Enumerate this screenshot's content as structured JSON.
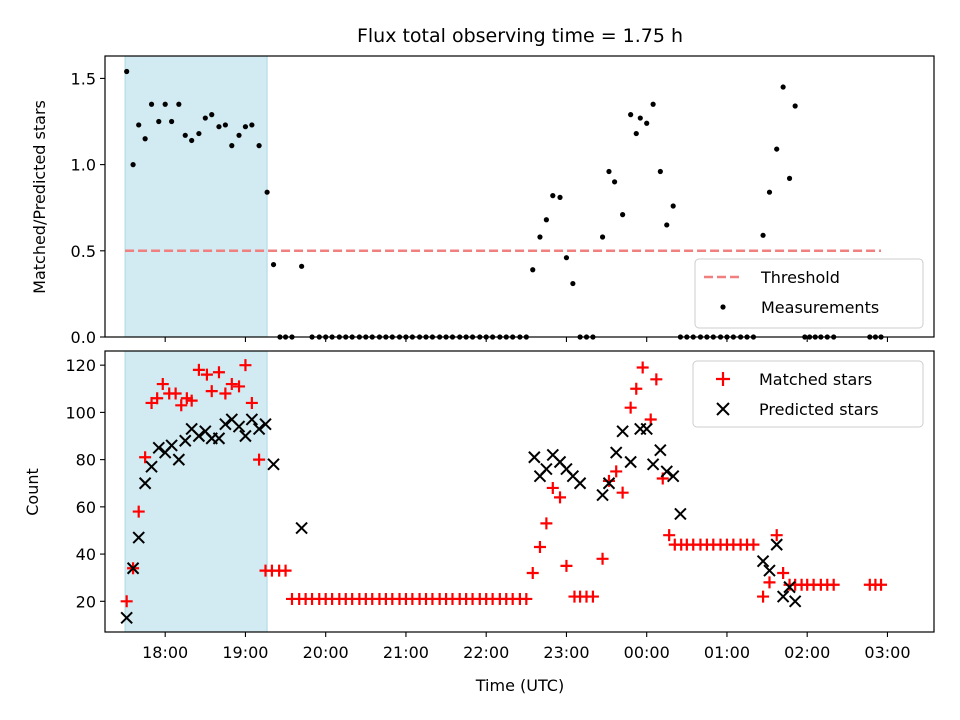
{
  "chart_data": [
    {
      "type": "scatter",
      "title": "Flux total observing time = 1.75 h",
      "xlabel": "",
      "ylabel": "Matched/Predicted stars",
      "xlim": [
        17.25,
        27.58
      ],
      "ylim": [
        0,
        1.63
      ],
      "yticks": [
        0.0,
        0.5,
        1.0,
        1.5
      ],
      "ytick_labels": [
        "0.0",
        "0.5",
        "1.0",
        "1.5"
      ],
      "xticks": [
        18,
        19,
        20,
        21,
        22,
        23,
        24,
        25,
        26,
        27
      ],
      "shaded_region": {
        "x_start": 17.5,
        "x_end": 19.27,
        "color": "#add8e6"
      },
      "threshold": {
        "name": "Threshold",
        "value": 0.5,
        "x_start": 17.5,
        "x_end": 26.92,
        "color": "#f08080"
      },
      "legend": {
        "position": "lower-right",
        "entries": [
          "Threshold",
          "Measurements"
        ]
      },
      "series": [
        {
          "name": "Measurements",
          "color": "#000000",
          "marker": "dot",
          "x": [
            17.52,
            17.6,
            17.67,
            17.75,
            17.83,
            17.92,
            18.0,
            18.08,
            18.17,
            18.25,
            18.33,
            18.42,
            18.5,
            18.58,
            18.67,
            18.75,
            18.83,
            18.92,
            19.0,
            19.08,
            19.17,
            19.27,
            19.35,
            19.43,
            19.5,
            19.58,
            19.7,
            19.83,
            19.92,
            20.0,
            20.08,
            20.17,
            20.25,
            20.33,
            20.42,
            20.5,
            20.58,
            20.67,
            20.75,
            20.83,
            20.92,
            21.0,
            21.08,
            21.17,
            21.25,
            21.33,
            21.42,
            21.5,
            21.58,
            21.67,
            21.75,
            21.83,
            21.92,
            22.0,
            22.08,
            22.17,
            22.25,
            22.33,
            22.42,
            22.5,
            22.58,
            22.67,
            22.75,
            22.83,
            22.92,
            23.0,
            23.08,
            23.17,
            23.25,
            23.33,
            23.45,
            23.53,
            23.6,
            23.7,
            23.8,
            23.87,
            23.92,
            24.0,
            24.08,
            24.17,
            24.25,
            24.33,
            24.42,
            24.5,
            24.58,
            24.67,
            24.75,
            24.83,
            24.92,
            25.0,
            25.08,
            25.17,
            25.25,
            25.33,
            25.45,
            25.53,
            25.62,
            25.7,
            25.78,
            25.85,
            25.97,
            26.03,
            26.1,
            26.17,
            26.25,
            26.33,
            26.78,
            26.85,
            26.92
          ],
          "y": [
            1.54,
            1.0,
            1.23,
            1.15,
            1.35,
            1.25,
            1.35,
            1.25,
            1.35,
            1.17,
            1.14,
            1.18,
            1.27,
            1.29,
            1.22,
            1.23,
            1.11,
            1.17,
            1.22,
            1.23,
            1.11,
            0.84,
            0.42,
            0.0,
            0.0,
            0.0,
            0.41,
            0.0,
            0.0,
            0.0,
            0.0,
            0.0,
            0.0,
            0.0,
            0.0,
            0.0,
            0.0,
            0.0,
            0.0,
            0.0,
            0.0,
            0.0,
            0.0,
            0.0,
            0.0,
            0.0,
            0.0,
            0.0,
            0.0,
            0.0,
            0.0,
            0.0,
            0.0,
            0.0,
            0.0,
            0.0,
            0.0,
            0.0,
            0.0,
            0.0,
            0.39,
            0.58,
            0.68,
            0.82,
            0.81,
            0.46,
            0.31,
            0.0,
            0.0,
            0.0,
            0.58,
            0.96,
            0.9,
            0.71,
            1.29,
            1.18,
            1.27,
            1.24,
            1.35,
            0.96,
            0.65,
            0.76,
            0.0,
            0.0,
            0.0,
            0.0,
            0.0,
            0.0,
            0.0,
            0.0,
            0.0,
            0.0,
            0.0,
            0.0,
            0.59,
            0.84,
            1.09,
            1.45,
            0.92,
            1.34,
            0.0,
            0.0,
            0.0,
            0.0,
            0.0,
            0.0,
            0.0,
            0.0,
            0.0
          ]
        }
      ]
    },
    {
      "type": "scatter",
      "title": "",
      "xlabel": "Time (UTC)",
      "ylabel": "Count",
      "xlim": [
        17.25,
        27.58
      ],
      "ylim": [
        7,
        126
      ],
      "yticks": [
        20,
        40,
        60,
        80,
        100,
        120
      ],
      "ytick_labels": [
        "20",
        "40",
        "60",
        "80",
        "100",
        "120"
      ],
      "xticks": [
        18,
        19,
        20,
        21,
        22,
        23,
        24,
        25,
        26,
        27
      ],
      "xtick_labels": [
        "18:00",
        "19:00",
        "20:00",
        "21:00",
        "22:00",
        "23:00",
        "00:00",
        "01:00",
        "02:00",
        "03:00"
      ],
      "shaded_region": {
        "x_start": 17.5,
        "x_end": 19.27,
        "color": "#add8e6"
      },
      "legend": {
        "position": "top-right",
        "entries": [
          "Matched stars",
          "Predicted stars"
        ]
      },
      "series": [
        {
          "name": "Matched stars",
          "color": "#ff0000",
          "marker": "plus",
          "x": [
            17.52,
            17.6,
            17.67,
            17.75,
            17.83,
            17.9,
            17.97,
            18.05,
            18.13,
            18.2,
            18.27,
            18.33,
            18.42,
            18.52,
            18.58,
            18.67,
            18.75,
            18.83,
            18.92,
            19.0,
            19.08,
            19.17,
            19.25,
            19.33,
            19.42,
            19.5,
            19.58,
            19.67,
            19.75,
            19.83,
            19.92,
            20.0,
            20.08,
            20.17,
            20.25,
            20.33,
            20.42,
            20.5,
            20.58,
            20.67,
            20.75,
            20.83,
            20.92,
            21.0,
            21.08,
            21.17,
            21.25,
            21.33,
            21.42,
            21.5,
            21.58,
            21.67,
            21.75,
            21.83,
            21.92,
            22.0,
            22.08,
            22.17,
            22.25,
            22.33,
            22.42,
            22.5,
            22.58,
            22.67,
            22.75,
            22.83,
            22.92,
            23.0,
            23.1,
            23.17,
            23.25,
            23.33,
            23.45,
            23.53,
            23.62,
            23.7,
            23.8,
            23.87,
            23.95,
            24.05,
            24.12,
            24.2,
            24.28,
            24.35,
            24.43,
            24.5,
            24.58,
            24.67,
            24.75,
            24.83,
            24.92,
            25.0,
            25.08,
            25.17,
            25.25,
            25.33,
            25.45,
            25.53,
            25.62,
            25.7,
            25.78,
            25.85,
            25.93,
            26.0,
            26.08,
            26.17,
            26.25,
            26.33,
            26.78,
            26.85,
            26.92
          ],
          "y": [
            20,
            34,
            58,
            81,
            104,
            106,
            112,
            108,
            108,
            103,
            106,
            105,
            118,
            116,
            109,
            117,
            108,
            112,
            111,
            120,
            104,
            80,
            33,
            33,
            33,
            33,
            21,
            21,
            21,
            21,
            21,
            21,
            21,
            21,
            21,
            21,
            21,
            21,
            21,
            21,
            21,
            21,
            21,
            21,
            21,
            21,
            21,
            21,
            21,
            21,
            21,
            21,
            21,
            21,
            21,
            21,
            21,
            21,
            21,
            21,
            21,
            21,
            32,
            43,
            53,
            68,
            64,
            35,
            22,
            22,
            22,
            22,
            38,
            71,
            75,
            66,
            102,
            110,
            119,
            97,
            114,
            72,
            48,
            44,
            44,
            44,
            44,
            44,
            44,
            44,
            44,
            44,
            44,
            44,
            44,
            44,
            22,
            28,
            48,
            32,
            27,
            27,
            27,
            27,
            27,
            27,
            27,
            27,
            27,
            27,
            27
          ]
        },
        {
          "name": "Predicted stars",
          "color": "#000000",
          "marker": "x",
          "x": [
            17.52,
            17.6,
            17.67,
            17.75,
            17.83,
            17.92,
            18.0,
            18.08,
            18.17,
            18.25,
            18.33,
            18.42,
            18.5,
            18.58,
            18.67,
            18.75,
            18.83,
            18.92,
            19.0,
            19.08,
            19.17,
            19.25,
            19.35,
            19.7,
            22.6,
            22.67,
            22.75,
            22.83,
            22.92,
            23.0,
            23.08,
            23.17,
            23.45,
            23.53,
            23.62,
            23.7,
            23.8,
            23.92,
            24.0,
            24.08,
            24.17,
            24.25,
            24.33,
            24.42,
            25.45,
            25.53,
            25.62,
            25.7,
            25.78,
            25.85
          ],
          "y": [
            13,
            34,
            47,
            70,
            77,
            85,
            83,
            86,
            80,
            88,
            93,
            90,
            92,
            89,
            89,
            95,
            97,
            94,
            90,
            97,
            93,
            95,
            78,
            51,
            81,
            73,
            76,
            82,
            79,
            76,
            73,
            70,
            65,
            70,
            83,
            92,
            79,
            93,
            93,
            78,
            84,
            75,
            73,
            57,
            37,
            33,
            44,
            22,
            26,
            20
          ]
        }
      ]
    }
  ]
}
